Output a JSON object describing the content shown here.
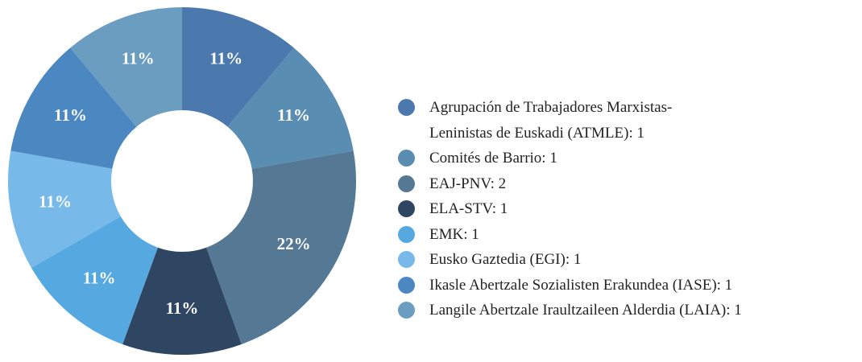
{
  "chart_data": {
    "type": "pie",
    "categories": [
      "Agrupación de Trabajadores Marxistas-Leninistas de Euskadi (ATMLE)",
      "Comités de Barrio",
      "EAJ-PNV",
      "ELA-STV",
      "EMK",
      "Eusko Gaztedia (EGI)",
      "Ikasle Abertzale Sozialisten Erakundea (IASE)",
      "Langile Abertzale Iraultzaileen Alderdia (LAIA)"
    ],
    "values": [
      1,
      1,
      2,
      1,
      1,
      1,
      1,
      1
    ],
    "value_labels": [
      "11%",
      "11%",
      "22%",
      "11%",
      "11%",
      "11%",
      "11%",
      "11%"
    ],
    "legend_labels": [
      "Agrupación de Trabajadores Marxistas-Leninistas de Euskadi (ATMLE): 1",
      "Comités de Barrio: 1",
      "EAJ-PNV: 2",
      "ELA-STV: 1",
      "EMK: 1",
      "Eusko Gaztedia (EGI): 1",
      "Ikasle Abertzale Sozialisten Erakundea (IASE): 1",
      "Langile Abertzale Iraultzaileen Alderdia (LAIA): 1"
    ],
    "colors": [
      "#4b79ae",
      "#5a8db2",
      "#557994",
      "#2f4662",
      "#56a9e0",
      "#77b9e9",
      "#4b87c1",
      "#6b9dc1"
    ],
    "donut": true,
    "legend": "right"
  }
}
